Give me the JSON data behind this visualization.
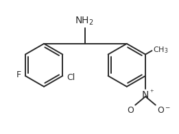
{
  "bg_color": "#ffffff",
  "line_color": "#2a2a2a",
  "line_width": 1.4,
  "font_size": 9,
  "r": 0.52,
  "lcx": -0.95,
  "lcy": -0.18,
  "rcx": 1.05,
  "rcy": -0.18,
  "xlim": [
    -2.0,
    2.3
  ],
  "ylim": [
    -1.75,
    1.3
  ]
}
